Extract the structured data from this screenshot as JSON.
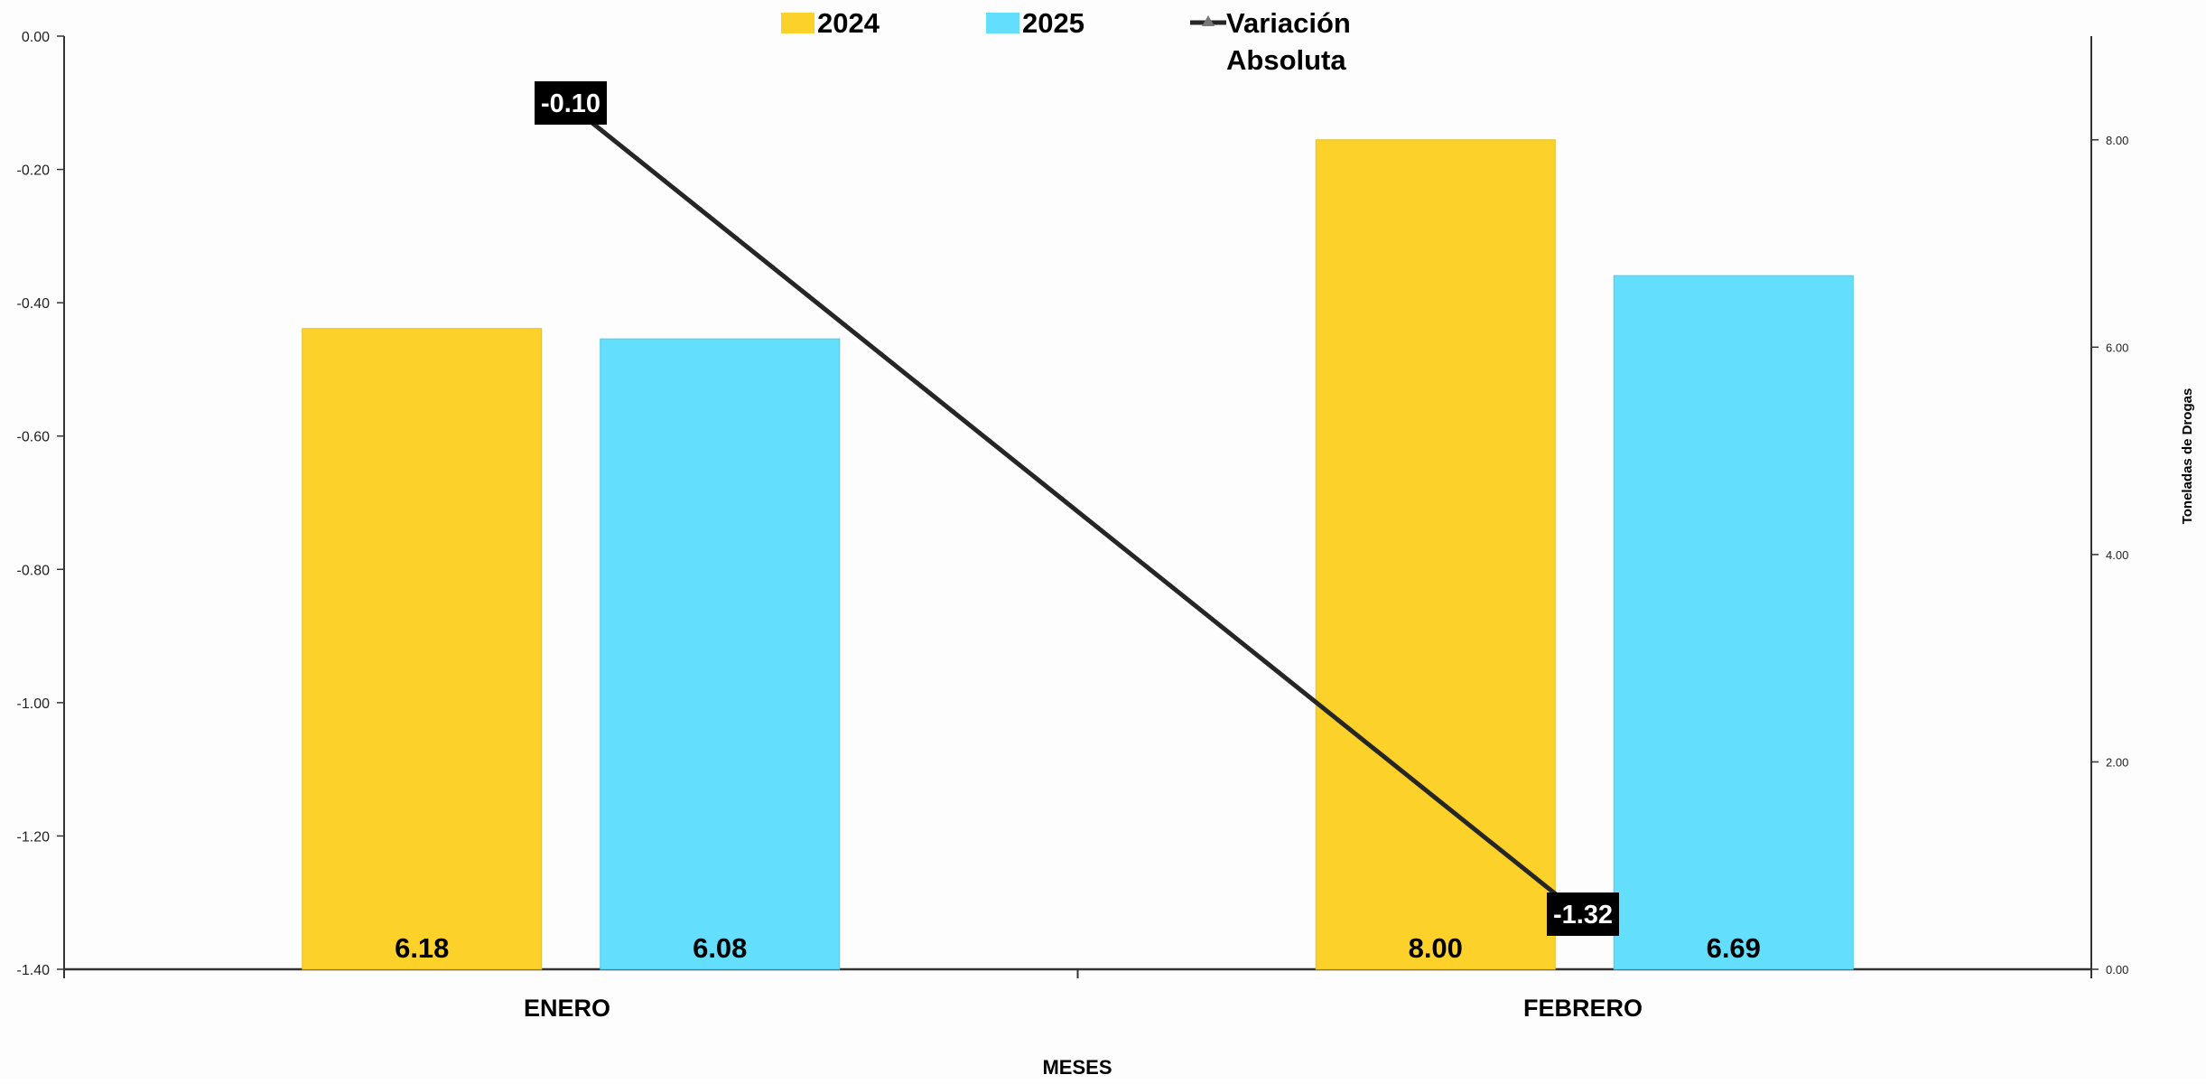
{
  "chart_data": {
    "type": "bar",
    "title": "",
    "xlabel": "MESES",
    "ylabel": "",
    "y2label": "Toneladas de Drogas",
    "categories": [
      "ENERO",
      "FEBRERO"
    ],
    "series": [
      {
        "name": "2024",
        "type": "bar",
        "axis": "right",
        "color": "#FCD22A",
        "values": [
          6.18,
          8.0
        ],
        "labels": [
          "6.18",
          "8.00"
        ]
      },
      {
        "name": "2025",
        "type": "bar",
        "axis": "right",
        "color": "#64DEFD",
        "values": [
          6.08,
          6.69
        ],
        "labels": [
          "6.08",
          "6.69"
        ]
      },
      {
        "name": "Variación Absoluta",
        "type": "line",
        "axis": "left",
        "color": "#262626",
        "values": [
          -0.1,
          -1.32
        ],
        "labels": [
          "-0.10",
          "-1.32"
        ]
      }
    ],
    "ylim_left": [
      -1.4,
      0.0
    ],
    "yticks_left": [
      "0.00",
      "-0.20",
      "-0.40",
      "-0.60",
      "-0.80",
      "-1.00",
      "-1.20",
      "-1.40"
    ],
    "ylim_right": [
      0,
      9
    ],
    "yticks_right": [
      "0.00",
      "2.00",
      "4.00",
      "6.00",
      "8.00"
    ],
    "grid": false,
    "legend": {
      "position": "top",
      "items": [
        {
          "label": "2024",
          "color": "#FCD22A"
        },
        {
          "label": "2025",
          "color": "#64DEFD"
        },
        {
          "label_line1": "Variación",
          "label_line2": "Absoluta",
          "color": "#262626"
        }
      ]
    }
  }
}
